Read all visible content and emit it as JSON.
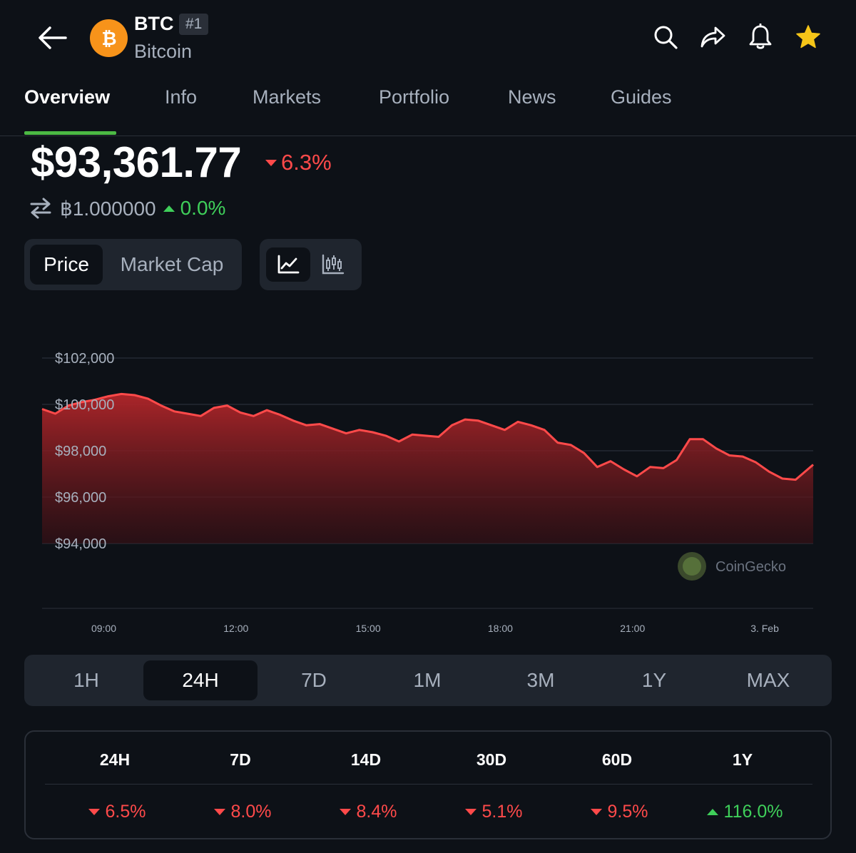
{
  "header": {
    "symbol": "BTC",
    "rank": "#1",
    "name": "Bitcoin"
  },
  "tabs": [
    "Overview",
    "Info",
    "Markets",
    "Portfolio",
    "News",
    "Guides"
  ],
  "price": {
    "value": "$93,361.77",
    "change": "6.3%",
    "change_direction": "down",
    "btc_value": "฿1.000000",
    "btc_change": "0.0%",
    "btc_change_direction": "up"
  },
  "toggle": {
    "price_label": "Price",
    "market_cap_label": "Market Cap"
  },
  "colors": {
    "background": "#0d1117",
    "negative": "#ff4a4a",
    "positive": "#3fcf5a",
    "accent": "#4cb944",
    "btc_orange": "#f7931a"
  },
  "watermark": "CoinGecko",
  "chart_data": {
    "type": "area",
    "title": "",
    "xlabel": "",
    "ylabel": "",
    "y_tick_labels": [
      "$102,000",
      "$100,000",
      "$98,000",
      "$96,000",
      "$94,000"
    ],
    "y_ticks": [
      102000,
      100000,
      98000,
      96000,
      94000
    ],
    "x_tick_labels": [
      "09:00",
      "12:00",
      "15:00",
      "18:00",
      "21:00",
      "3. Feb"
    ],
    "x_ticks": [
      8,
      11,
      14,
      17,
      20,
      23
    ],
    "x_range": [
      6.6,
      24.1
    ],
    "ylim": [
      93800,
      102900
    ],
    "grid": true,
    "series": [
      {
        "x": [
          6.6,
          6.9,
          7.2,
          7.5,
          7.8,
          8.1,
          8.4,
          8.7,
          9.0,
          9.3,
          9.6,
          9.9,
          10.2,
          10.5,
          10.8,
          11.1,
          11.4,
          11.7,
          12.0,
          12.3,
          12.6,
          12.9,
          13.2,
          13.5,
          13.8,
          14.1,
          14.4,
          14.7,
          15.0,
          15.3,
          15.6,
          15.9,
          16.2,
          16.5,
          16.8,
          17.1,
          17.4,
          17.7,
          18.0,
          18.3,
          18.6,
          18.9,
          19.2,
          19.5,
          19.8,
          20.1,
          20.4,
          20.7,
          21.0,
          21.3,
          21.6,
          21.9,
          22.2,
          22.5,
          22.8,
          23.1,
          23.4,
          23.7,
          24.1
        ],
        "values": [
          99800,
          99600,
          99950,
          100100,
          100200,
          100350,
          100450,
          100400,
          100250,
          99950,
          99700,
          99600,
          99500,
          99850,
          99950,
          99650,
          99500,
          99750,
          99550,
          99300,
          99100,
          99150,
          98950,
          98750,
          98900,
          98800,
          98650,
          98400,
          98700,
          98650,
          98600,
          99100,
          99350,
          99300,
          99100,
          98900,
          99250,
          99100,
          98900,
          98350,
          98250,
          97900,
          97300,
          97550,
          97200,
          96900,
          97300,
          97250,
          97600,
          98500,
          98500,
          98100,
          97800,
          97750,
          97500,
          97100,
          96800,
          96750,
          97400
        ]
      }
    ]
  },
  "time_ranges": {
    "options": [
      "1H",
      "24H",
      "7D",
      "1M",
      "3M",
      "1Y",
      "MAX"
    ],
    "selected": "24H"
  },
  "performance": {
    "columns": [
      {
        "label": "24H",
        "value": "6.5%",
        "direction": "down"
      },
      {
        "label": "7D",
        "value": "8.0%",
        "direction": "down"
      },
      {
        "label": "14D",
        "value": "8.4%",
        "direction": "down"
      },
      {
        "label": "30D",
        "value": "5.1%",
        "direction": "down"
      },
      {
        "label": "60D",
        "value": "9.5%",
        "direction": "down"
      },
      {
        "label": "1Y",
        "value": "116.0%",
        "direction": "up"
      }
    ]
  }
}
